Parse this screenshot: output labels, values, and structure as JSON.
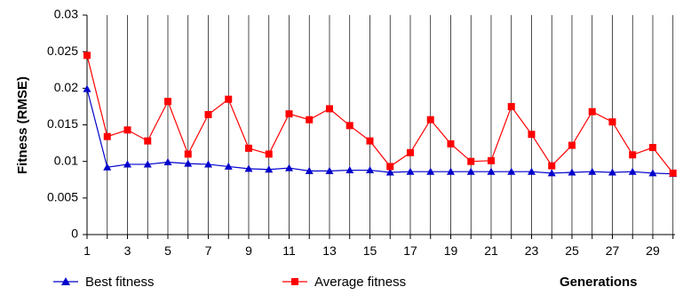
{
  "chart_data": {
    "type": "line",
    "title": "",
    "ylabel": "Fitness (RMSE)",
    "xlabel": "Generations",
    "ylim": [
      0,
      0.03
    ],
    "yticks": [
      "0",
      "0.005",
      "0.01",
      "0.015",
      "0.02",
      "0.025",
      "0.03"
    ],
    "ytick_values": [
      0,
      0.005,
      0.01,
      0.015,
      0.02,
      0.025,
      0.03
    ],
    "xlim": [
      1,
      30
    ],
    "xticks": [
      "1",
      "3",
      "5",
      "7",
      "9",
      "11",
      "13",
      "15",
      "17",
      "19",
      "21",
      "23",
      "25",
      "27",
      "29"
    ],
    "xtick_values": [
      1,
      3,
      5,
      7,
      9,
      11,
      13,
      15,
      17,
      19,
      21,
      23,
      25,
      27,
      29
    ],
    "grid": "vertical",
    "legend": "bottom",
    "x": [
      1,
      2,
      3,
      4,
      5,
      6,
      7,
      8,
      9,
      10,
      11,
      12,
      13,
      14,
      15,
      16,
      17,
      18,
      19,
      20,
      21,
      22,
      23,
      24,
      25,
      26,
      27,
      28,
      29,
      30
    ],
    "series": [
      {
        "name": "Best fitness",
        "color": "#0000cc",
        "marker": "triangle",
        "values": [
          0.0199,
          0.0092,
          0.0096,
          0.0096,
          0.0099,
          0.0097,
          0.0096,
          0.0093,
          0.009,
          0.0089,
          0.0091,
          0.0087,
          0.0087,
          0.0088,
          0.0088,
          0.0085,
          0.0086,
          0.0086,
          0.0086,
          0.0086,
          0.0086,
          0.0086,
          0.0086,
          0.0084,
          0.0085,
          0.0086,
          0.0085,
          0.0086,
          0.0084,
          0.0083
        ]
      },
      {
        "name": "Average fitness",
        "color": "#ff0000",
        "marker": "square",
        "values": [
          0.0245,
          0.0134,
          0.0143,
          0.0128,
          0.0182,
          0.011,
          0.0164,
          0.0185,
          0.0118,
          0.011,
          0.0165,
          0.0157,
          0.0172,
          0.0149,
          0.0128,
          0.0093,
          0.0112,
          0.0157,
          0.0124,
          0.01,
          0.0101,
          0.0175,
          0.0137,
          0.0094,
          0.0122,
          0.0168,
          0.0154,
          0.0109,
          0.0119,
          0.0084
        ]
      }
    ]
  }
}
